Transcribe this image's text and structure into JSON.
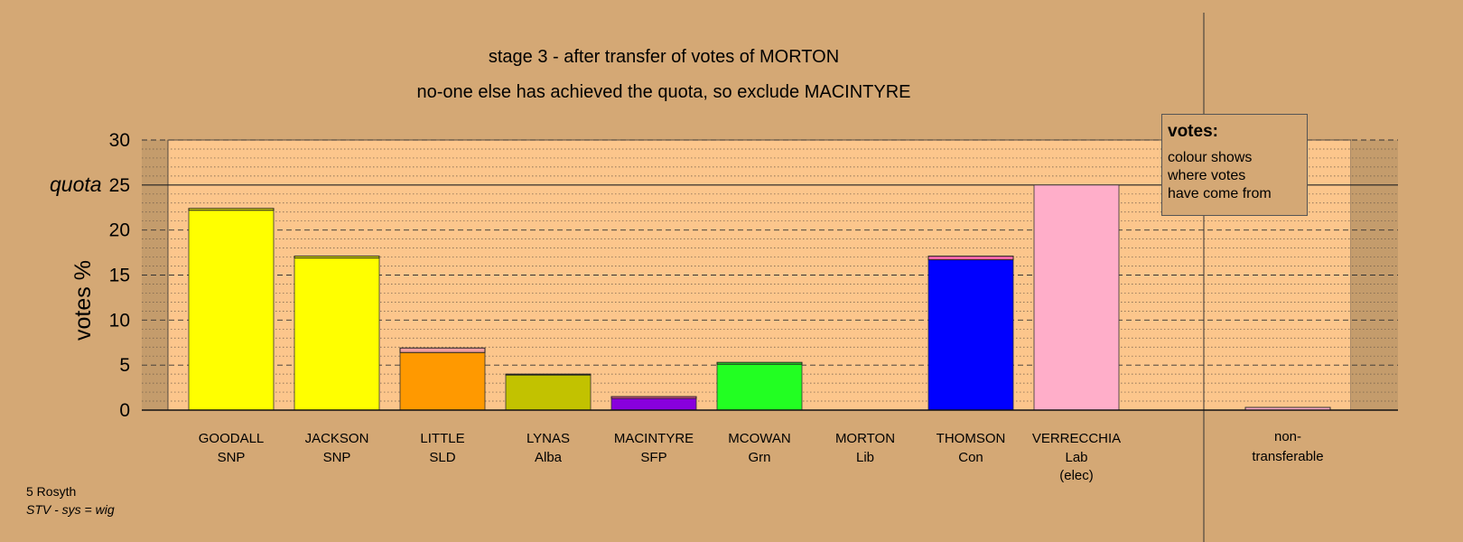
{
  "title": "stage 3 - after transfer of votes of MORTON",
  "subtitle": "no-one else has achieved the quota, so exclude MACINTYRE",
  "legend": {
    "heading": "votes:",
    "lines": [
      "colour shows",
      "where votes",
      "have come from"
    ]
  },
  "footer": {
    "line1": "5 Rosyth",
    "line2": "STV - sys = wig"
  },
  "colors": {
    "background": "#d4a875",
    "plot_area": "#fcc68c",
    "nontransferable_area": "#c49c6c"
  },
  "chart_data": {
    "type": "bar",
    "ylabel": "votes %",
    "ylim": [
      0,
      30
    ],
    "yticks": [
      0,
      5,
      10,
      15,
      20,
      25,
      30
    ],
    "quota": 25,
    "quota_label": "quota",
    "grid": true,
    "categories": [
      {
        "name": "GOODALL",
        "party": "SNP",
        "value": 22.4,
        "color": "#ffff00",
        "transfer": 0.2,
        "transfer_color": "#ffff00"
      },
      {
        "name": "JACKSON",
        "party": "SNP",
        "value": 17.1,
        "color": "#ffff00",
        "transfer": 0.2,
        "transfer_color": "#ffff00"
      },
      {
        "name": "LITTLE",
        "party": "SLD",
        "value": 6.9,
        "color": "#ff9900",
        "transfer": 0.5,
        "transfer_color": "#f2a0a0"
      },
      {
        "name": "LYNAS",
        "party": "Alba",
        "value": 4.0,
        "color": "#c2c200",
        "transfer": 0.1,
        "transfer_color": "#c2c200"
      },
      {
        "name": "MACINTYRE",
        "party": "SFP",
        "value": 1.5,
        "color": "#8800dd",
        "transfer": 0.2,
        "transfer_color": "#ff5aa0"
      },
      {
        "name": "MCOWAN",
        "party": "Grn",
        "value": 5.3,
        "color": "#22ff22",
        "transfer": 0.2,
        "transfer_color": "#22ff22"
      },
      {
        "name": "MORTON",
        "party": "Lib",
        "value": 0,
        "color": "#ffff66",
        "transfer": 0,
        "transfer_color": "#ffff66"
      },
      {
        "name": "THOMSON",
        "party": "Con",
        "value": 17.1,
        "color": "#0000ff",
        "transfer": 0.4,
        "transfer_color": "#ff66aa"
      },
      {
        "name": "VERRECCHIA",
        "party": "Lab",
        "note": "(elec)",
        "value": 25.0,
        "color": "#ffaec9",
        "transfer": 0,
        "transfer_color": "#ffaec9"
      }
    ],
    "nontransferable": {
      "label_line1": "non-",
      "label_line2": "transferable",
      "value": 0.3,
      "color": "#ffaec9"
    }
  }
}
